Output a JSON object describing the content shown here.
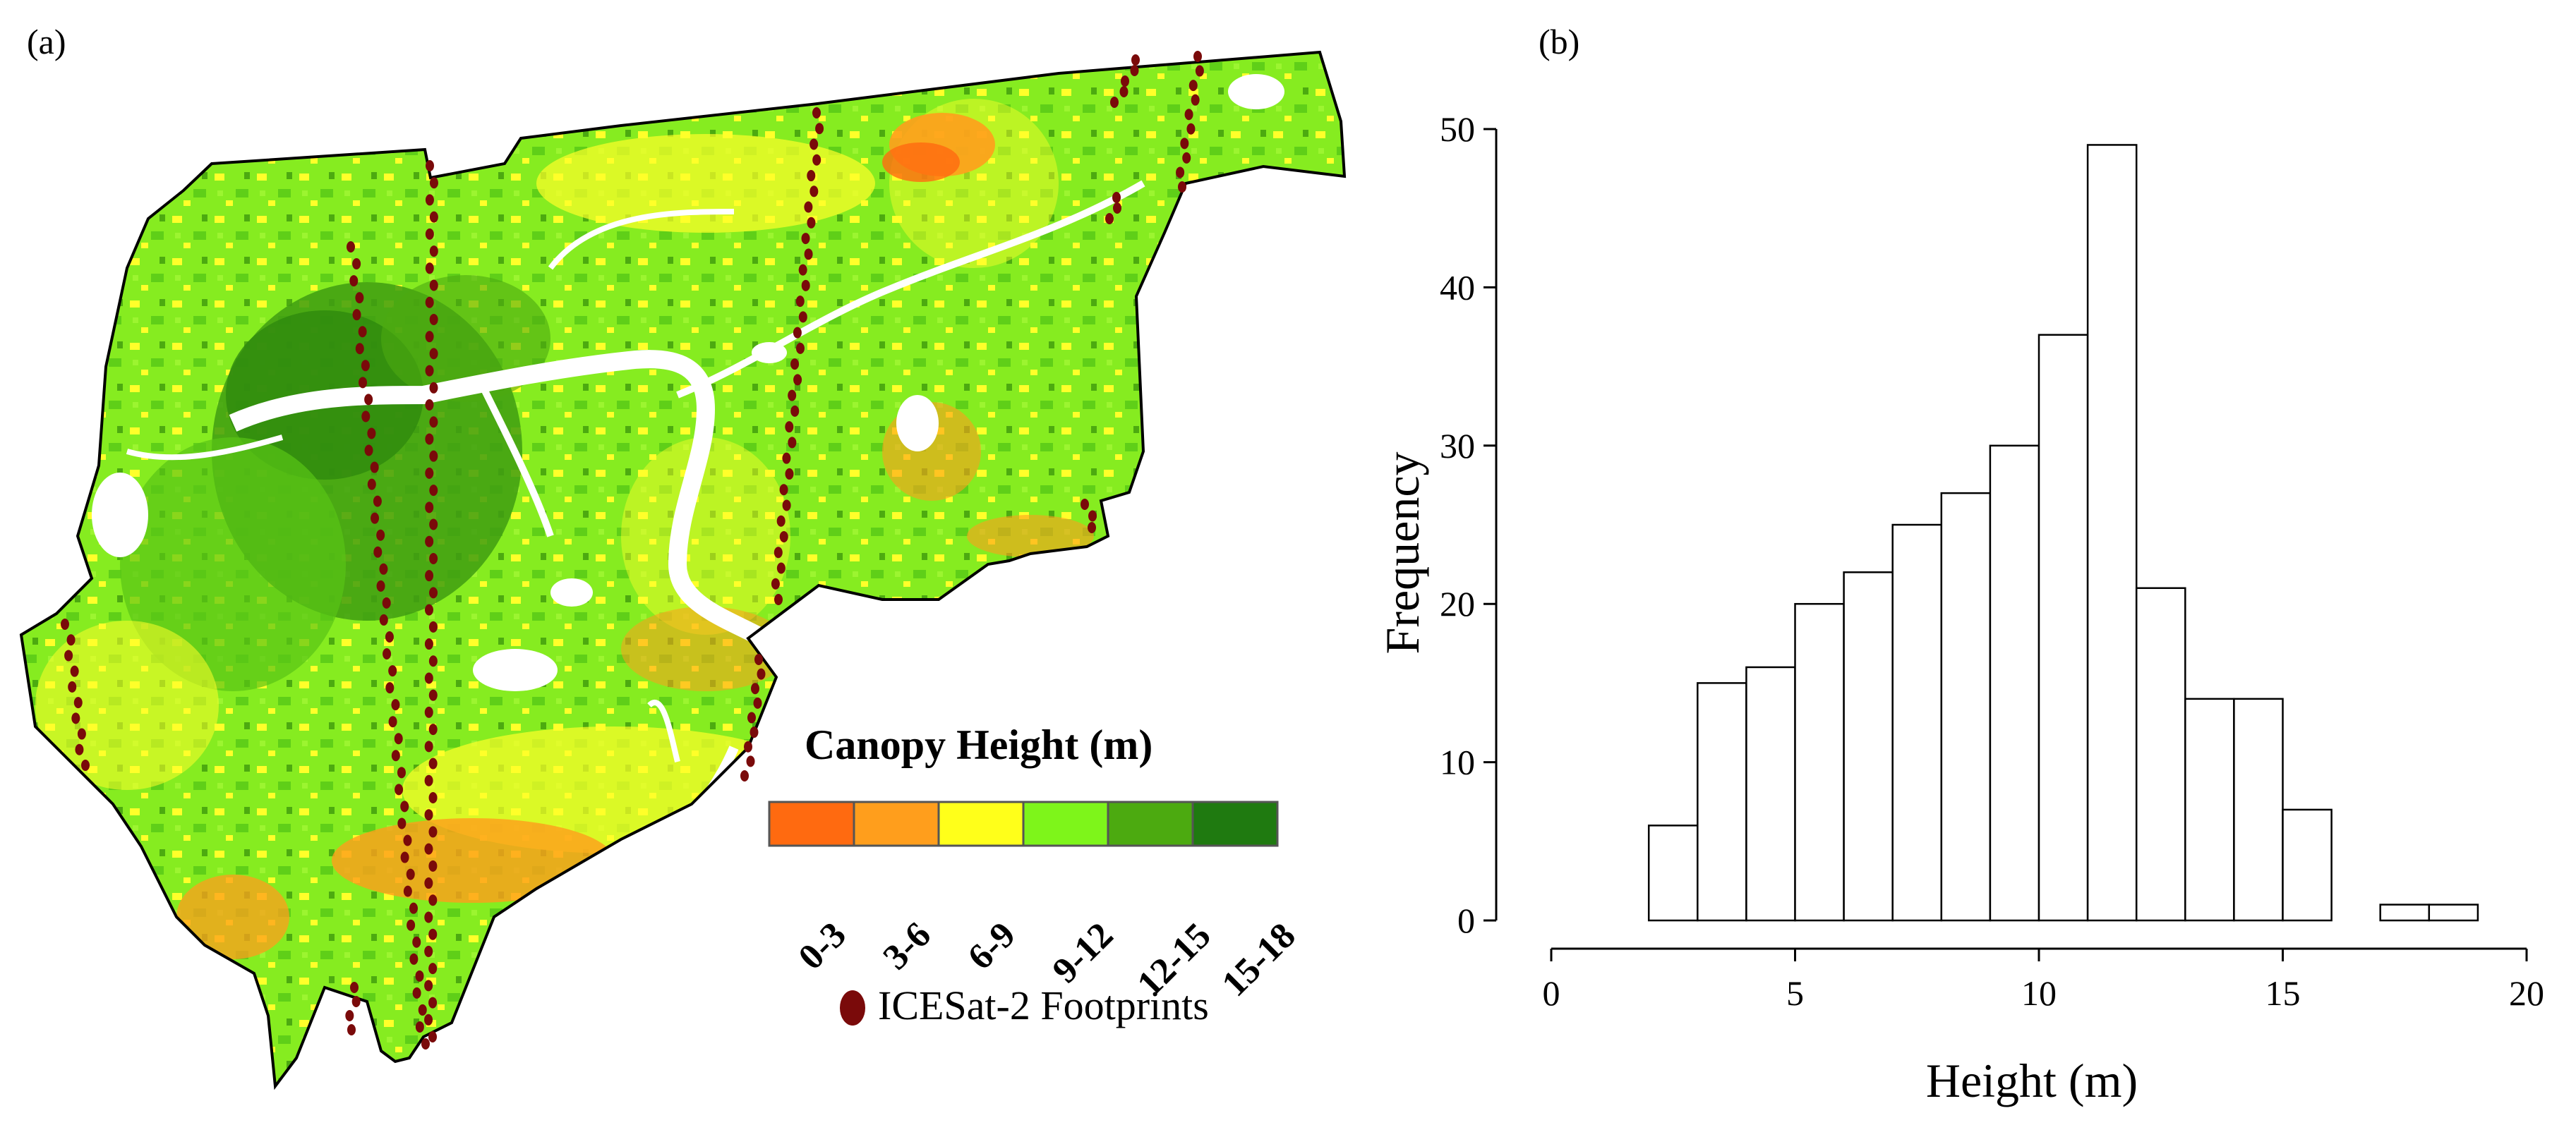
{
  "panels": {
    "a": "(a)",
    "b": "(b)"
  },
  "map": {
    "legend_title": "Canopy Height (m)",
    "classes": [
      {
        "label": "0-3",
        "color": "#ff6a10"
      },
      {
        "label": "3-6",
        "color": "#ff9e1c"
      },
      {
        "label": "6-9",
        "color": "#ffff1a"
      },
      {
        "label": "9-12",
        "color": "#7ef51a"
      },
      {
        "label": "12-15",
        "color": "#4caa10"
      },
      {
        "label": "15-18",
        "color": "#1f7a10"
      }
    ],
    "footprint_label": "ICESat-2 Footprints",
    "footprint_color": "#7a0a0a"
  },
  "chart_data": {
    "type": "bar",
    "title": "",
    "xlabel": "Height (m)",
    "ylabel": "Frequency",
    "xlim": [
      0,
      20
    ],
    "ylim": [
      0,
      50
    ],
    "x_ticks": [
      0,
      5,
      10,
      15,
      20
    ],
    "y_ticks": [
      0,
      10,
      20,
      30,
      40,
      50
    ],
    "bins": [
      {
        "from": 2,
        "to": 3,
        "count": 6
      },
      {
        "from": 3,
        "to": 4,
        "count": 15
      },
      {
        "from": 4,
        "to": 5,
        "count": 16
      },
      {
        "from": 5,
        "to": 6,
        "count": 20
      },
      {
        "from": 6,
        "to": 7,
        "count": 22
      },
      {
        "from": 7,
        "to": 8,
        "count": 25
      },
      {
        "from": 8,
        "to": 9,
        "count": 27
      },
      {
        "from": 9,
        "to": 10,
        "count": 30
      },
      {
        "from": 10,
        "to": 11,
        "count": 37
      },
      {
        "from": 11,
        "to": 12,
        "count": 49
      },
      {
        "from": 12,
        "to": 13,
        "count": 21
      },
      {
        "from": 13,
        "to": 14,
        "count": 14
      },
      {
        "from": 14,
        "to": 15,
        "count": 14
      },
      {
        "from": 15,
        "to": 16,
        "count": 7
      },
      {
        "from": 16,
        "to": 17,
        "count": 0
      },
      {
        "from": 17,
        "to": 18,
        "count": 1
      },
      {
        "from": 18,
        "to": 19,
        "count": 1
      }
    ]
  }
}
